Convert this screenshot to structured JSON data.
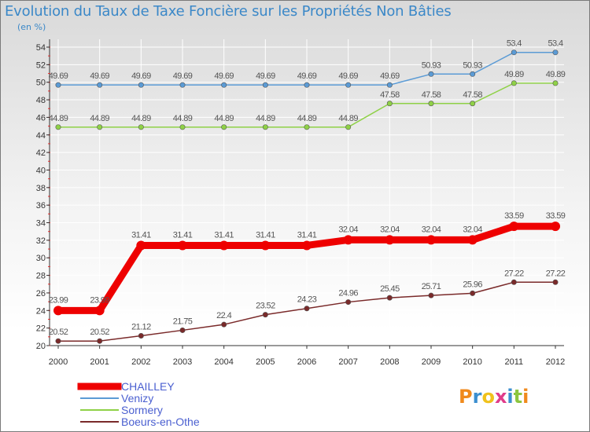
{
  "chart_data": {
    "type": "line",
    "title": "Evolution du Taux de Taxe Foncière sur les Propriétés Non Bâties",
    "ylabel": "(en %)",
    "xlabel": "",
    "categories": [
      "2000",
      "2001",
      "2002",
      "2003",
      "2004",
      "2005",
      "2006",
      "2007",
      "2008",
      "2009",
      "2010",
      "2011",
      "2012"
    ],
    "ylim": [
      20,
      54
    ],
    "yticks": [
      "20",
      "22",
      "24",
      "26",
      "28",
      "30",
      "32",
      "34",
      "36",
      "38",
      "40",
      "42",
      "44",
      "46",
      "48",
      "50",
      "52",
      "54"
    ],
    "series": [
      {
        "name": "Venizy",
        "color": "#5b9bd5",
        "values": [
          49.69,
          49.69,
          49.69,
          49.69,
          49.69,
          49.69,
          49.69,
          49.69,
          49.69,
          50.93,
          50.93,
          53.4,
          53.4
        ],
        "labels": [
          "49.69",
          "49.69",
          "49.69",
          "49.69",
          "49.69",
          "49.69",
          "49.69",
          "49.69",
          "49.69",
          "50.93",
          "50.93",
          "53.4",
          "53.4"
        ]
      },
      {
        "name": "Sormery",
        "color": "#8fd147",
        "values": [
          44.89,
          44.89,
          44.89,
          44.89,
          44.89,
          44.89,
          44.89,
          44.89,
          47.58,
          47.58,
          47.58,
          49.89,
          49.89
        ],
        "labels": [
          "44.89",
          "44.89",
          "44.89",
          "44.89",
          "44.89",
          "44.89",
          "44.89",
          "44.89",
          "47.58",
          "47.58",
          "47.58",
          "49.89",
          "49.89"
        ]
      },
      {
        "name": "CHAILLEY",
        "color": "#ee0000",
        "values": [
          23.99,
          23.99,
          31.41,
          31.41,
          31.41,
          31.41,
          31.41,
          32.04,
          32.04,
          32.04,
          32.04,
          33.59,
          33.59
        ],
        "labels": [
          "23.99",
          "23.99",
          "31.41",
          "31.41",
          "31.41",
          "31.41",
          "31.41",
          "32.04",
          "32.04",
          "32.04",
          "32.04",
          "33.59",
          "33.59"
        ]
      },
      {
        "name": "Boeurs-en-Othe",
        "color": "#7a2a2a",
        "values": [
          20.52,
          20.52,
          21.12,
          21.75,
          22.4,
          23.52,
          24.23,
          24.96,
          25.45,
          25.71,
          25.96,
          27.22,
          27.22
        ],
        "labels": [
          "20.52",
          "20.52",
          "21.12",
          "21.75",
          "22.4",
          "23.52",
          "24.23",
          "24.96",
          "25.45",
          "25.71",
          "25.96",
          "27.22",
          "27.22"
        ]
      }
    ],
    "legend_order": [
      "CHAILLEY",
      "Venizy",
      "Sormery",
      "Boeurs-en-Othe"
    ],
    "legend_position": "bottom-left"
  },
  "logo": {
    "letters": [
      "P",
      "r",
      "o",
      "x",
      "i",
      "t",
      "i"
    ],
    "colors": [
      "#f08a1c",
      "#3c8fd0",
      "#f0c21c",
      "#e03c8a",
      "#3c8fd0",
      "#8cc63f",
      "#f08a1c"
    ]
  }
}
